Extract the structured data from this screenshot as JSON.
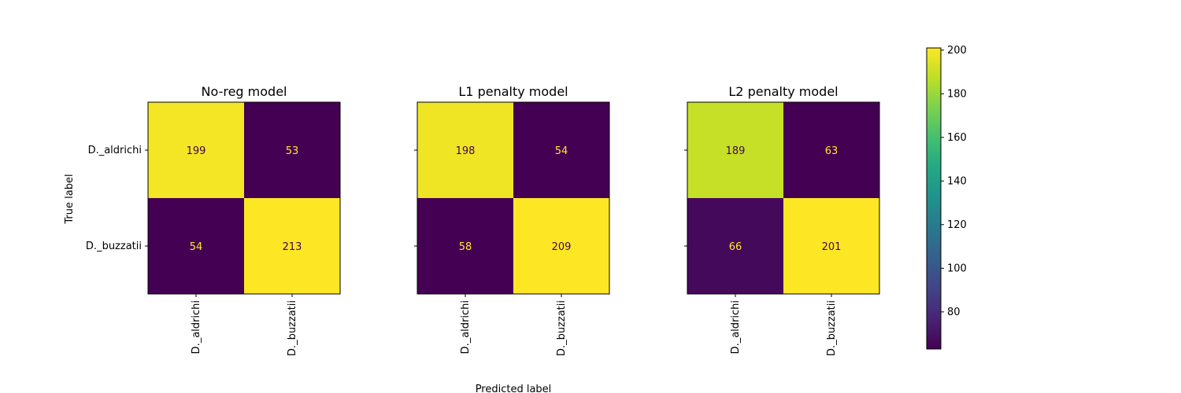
{
  "chart_data": {
    "type": "heatmap",
    "colormap": "viridis",
    "shared": {
      "ylabel": "True label",
      "xlabel": "Predicted label",
      "classes": [
        "D._aldrichi",
        "D._buzzatii"
      ]
    },
    "panels": [
      {
        "title": "No-reg model",
        "matrix": [
          [
            199,
            53
          ],
          [
            54,
            213
          ]
        ]
      },
      {
        "title": "L1 penalty model",
        "matrix": [
          [
            198,
            54
          ],
          [
            58,
            209
          ]
        ]
      },
      {
        "title": "L2 penalty model",
        "matrix": [
          [
            189,
            63
          ],
          [
            66,
            201
          ]
        ]
      }
    ],
    "colorbar": {
      "min": 63,
      "max": 201,
      "ticks": [
        80,
        100,
        120,
        140,
        160,
        180,
        200
      ]
    }
  }
}
